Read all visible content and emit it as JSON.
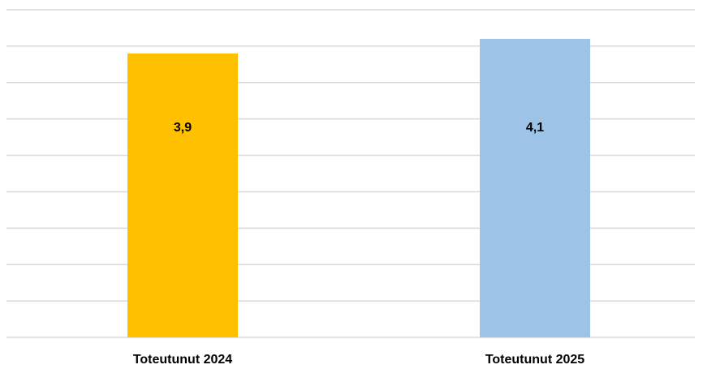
{
  "chart_data": {
    "type": "bar",
    "categories": [
      "Toteutunut 2024",
      "Toteutunut 2025"
    ],
    "values": [
      3.9,
      4.1
    ],
    "value_labels": [
      "3,9",
      "4,1"
    ],
    "colors": [
      "#ffc000",
      "#9dc3e6"
    ],
    "ylim": [
      0,
      4.5
    ],
    "yticks": [
      0,
      0.5,
      1,
      1.5,
      2,
      2.5,
      3,
      3.5,
      4,
      4.5
    ],
    "grid": true
  }
}
